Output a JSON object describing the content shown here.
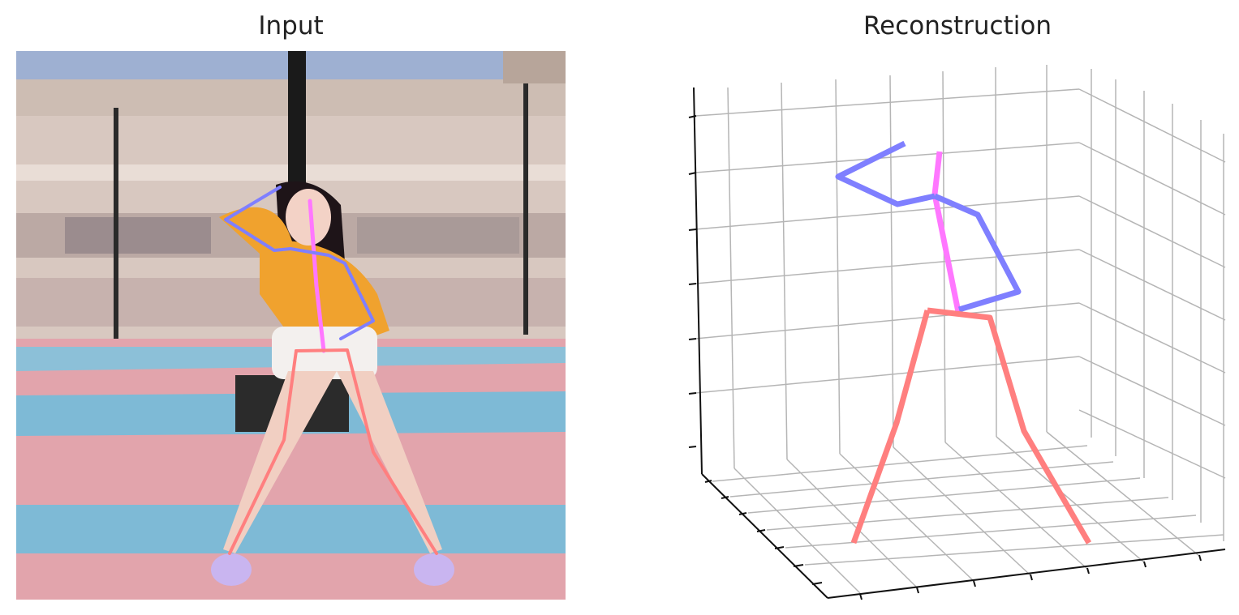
{
  "titles": {
    "left": "Input",
    "right": "Reconstruction"
  },
  "colors": {
    "spine": "#ff77ff",
    "arms": "#7f7fff",
    "legs": "#ff7f7f",
    "grid": "#b5b5b5",
    "axis": "#111111"
  },
  "photo_colors": {
    "sky": "#9eb0d2",
    "building": "#d8c8c0",
    "court_pink": "#e2a4ac",
    "court_blue": "#7ebad6",
    "sweater": "#f0a22e",
    "hair": "#1e1418",
    "skin": "#f1cfc2",
    "shorts": "#f3f0ee"
  }
}
